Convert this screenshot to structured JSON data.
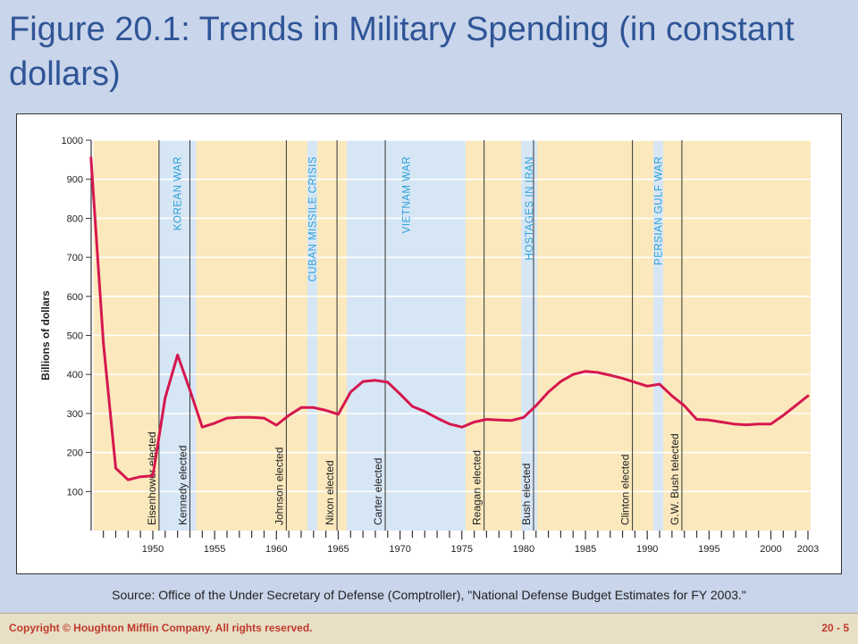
{
  "slide": {
    "title": "Figure 20.1: Trends in Military Spending (in constant dollars)",
    "source": "Source: Office of the Under Secretary of Defense (Comptroller), \"National Defense Budget Estimates for FY 2003.\"",
    "footer_left": "Copyright © Houghton Mifflin Company. All rights reserved.",
    "footer_right": "20 - 5"
  },
  "colors": {
    "background": "#c9d5ea",
    "title": "#2f5597",
    "peace_band": "#fbe9bd",
    "war_band": "#d6e6f5",
    "war_label": "#2aa0d8",
    "line": "#d6174f",
    "footer_text": "#c0392b"
  },
  "chart_data": {
    "type": "line",
    "title": "",
    "xlabel": "",
    "ylabel": "Billions of dollars",
    "xlim": [
      1945,
      2003
    ],
    "ylim": [
      0,
      1000
    ],
    "y_ticks": [
      100,
      200,
      300,
      400,
      500,
      600,
      700,
      800,
      900,
      1000
    ],
    "x_ticks": [
      "1950",
      "1955",
      "1960",
      "1965",
      "1970",
      "1975",
      "1980",
      "1985",
      "1990",
      "1995",
      "2000",
      "2003"
    ],
    "grid": "horizontal",
    "series": [
      {
        "name": "",
        "x": [
          1945,
          1946,
          1947,
          1948,
          1949,
          1950,
          1951,
          1952,
          1953,
          1954,
          1955,
          1956,
          1957,
          1958,
          1959,
          1960,
          1961,
          1962,
          1963,
          1964,
          1965,
          1966,
          1967,
          1968,
          1969,
          1970,
          1971,
          1972,
          1973,
          1974,
          1975,
          1976,
          1977,
          1978,
          1979,
          1980,
          1981,
          1982,
          1983,
          1984,
          1985,
          1986,
          1987,
          1988,
          1989,
          1990,
          1991,
          1992,
          1993,
          1994,
          1995,
          1996,
          1997,
          1998,
          1999,
          2000,
          2001,
          2002,
          2003
        ],
        "values": [
          955,
          480,
          160,
          130,
          138,
          140,
          340,
          450,
          360,
          265,
          275,
          288,
          290,
          290,
          288,
          270,
          295,
          315,
          315,
          308,
          298,
          355,
          382,
          385,
          380,
          350,
          318,
          305,
          288,
          273,
          265,
          278,
          285,
          283,
          282,
          290,
          320,
          355,
          382,
          400,
          408,
          405,
          398,
          390,
          380,
          370,
          375,
          345,
          320,
          285,
          283,
          278,
          273,
          271,
          273,
          273,
          295,
          320,
          345
        ]
      }
    ],
    "wars": [
      {
        "label": "KOREAN WAR",
        "start": 1950.5,
        "end": 1953.5
      },
      {
        "label": "CUBAN MISSILE CRISIS",
        "start": 1962.5,
        "end": 1963.3
      },
      {
        "label": "VIETNAM WAR",
        "start": 1965.7,
        "end": 1975.3
      },
      {
        "label": "HOSTAGES IN IRAN",
        "start": 1979.8,
        "end": 1981.1
      },
      {
        "label": "PERSIAN GULF WAR",
        "start": 1990.5,
        "end": 1991.3
      }
    ],
    "elections": [
      {
        "label": "Eisenhower elected",
        "year": 1950.5
      },
      {
        "label": "Kennedy elected",
        "year": 1953
      },
      {
        "label": "Johnson elected",
        "year": 1960.8
      },
      {
        "label": "Nixon elected",
        "year": 1964.9
      },
      {
        "label": "Carter elected",
        "year": 1968.8
      },
      {
        "label": "Reagan elected",
        "year": 1976.8
      },
      {
        "label": "Bush elected",
        "year": 1980.8
      },
      {
        "label": "Clinton elected",
        "year": 1988.8
      },
      {
        "label": "G.W. Bush telected",
        "year": 1992.8
      }
    ]
  }
}
